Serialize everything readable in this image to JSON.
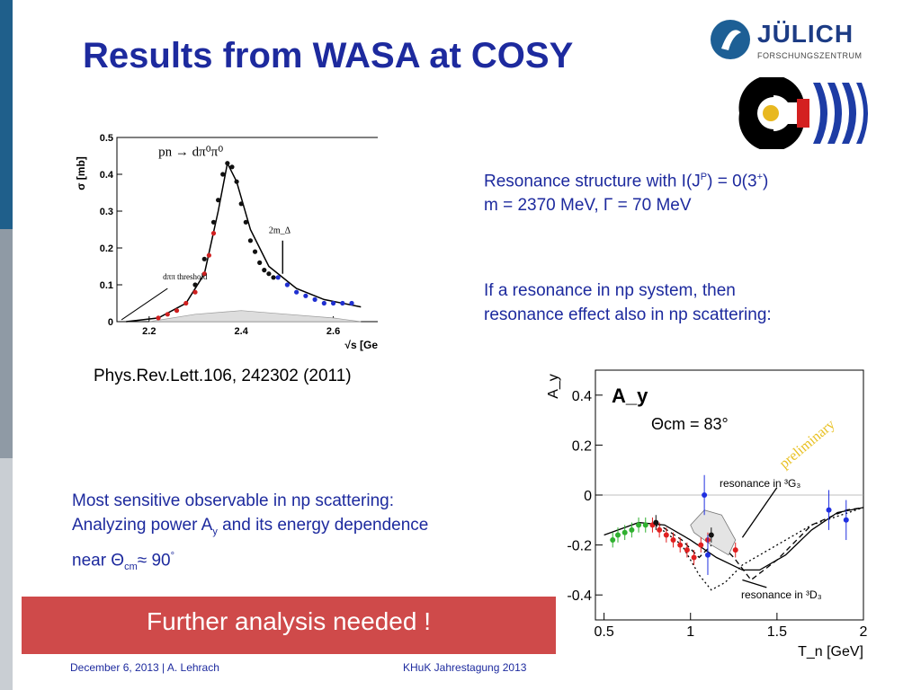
{
  "slide": {
    "title": "Results from WASA at COSY",
    "logo": {
      "wordmark": "JÜLICH",
      "subtitle": "FORSCHUNGSZENTRUM"
    },
    "resonance_text": {
      "line1_pre": "Resonance structure with I(J",
      "line1_sup": "P",
      "line1_post": ") = 0(3",
      "line1_sup2": "+",
      "line1_end": ")",
      "line2": "m = 2370 MeV, Γ = 70 MeV"
    },
    "np_text": {
      "line1": "If a resonance in np system, then",
      "line2": "resonance effect also in np scattering:"
    },
    "sensitive_text": {
      "line1": "Most sensitive observable in np scattering:",
      "line2_pre": "Analyzing power A",
      "line2_sub": "y",
      "line2_post": " and its  energy dependence",
      "line3_pre": "near Θ",
      "line3_sub": "cm",
      "line3_post": "≈ 90",
      "line3_sup": "°"
    },
    "reference": "Phys.Rev.Lett.106, 242302 (2011)",
    "banner": "Further analysis needed !",
    "footer_left": "December 6, 2013 | A. Lehrach",
    "footer_right": "KHuK Jahrestagung 2013",
    "colors": {
      "navy": "#1d2a9e",
      "banner": "#cf4a4a",
      "side_dark": "#1f5f8b",
      "side_mid": "#8f9aa5",
      "side_gray": "#c9ced3"
    }
  },
  "chart_data": [
    {
      "type": "scatter",
      "xlabel": "√s [GeV]",
      "ylabel": "σ [mb]",
      "xlim": [
        2.13,
        2.72
      ],
      "ylim": [
        0,
        0.5
      ],
      "xticks": [
        "2.2",
        "2.4",
        "2.6"
      ],
      "yticks": [
        "0",
        "0.1",
        "0.2",
        "0.3",
        "0.4",
        "0.5"
      ],
      "annotations": [
        "pn → dπ⁰π⁰",
        "2m_Δ",
        "dππ threshold"
      ],
      "series": [
        {
          "color": "#d02020",
          "x": [
            2.22,
            2.24,
            2.26,
            2.28,
            2.3,
            2.32,
            2.33,
            2.34
          ],
          "y": [
            0.01,
            0.02,
            0.03,
            0.05,
            0.08,
            0.13,
            0.18,
            0.24
          ]
        },
        {
          "color": "#111111",
          "x": [
            2.3,
            2.32,
            2.34,
            2.35,
            2.36,
            2.37,
            2.38,
            2.39,
            2.4,
            2.41,
            2.42,
            2.43,
            2.44,
            2.45,
            2.46,
            2.47
          ],
          "y": [
            0.1,
            0.17,
            0.27,
            0.33,
            0.4,
            0.43,
            0.42,
            0.38,
            0.32,
            0.27,
            0.22,
            0.19,
            0.16,
            0.14,
            0.13,
            0.12
          ]
        },
        {
          "color": "#2030d0",
          "x": [
            2.48,
            2.5,
            2.52,
            2.54,
            2.56,
            2.58,
            2.6,
            2.62,
            2.64
          ],
          "y": [
            0.12,
            0.1,
            0.08,
            0.07,
            0.06,
            0.05,
            0.05,
            0.05,
            0.05
          ]
        }
      ],
      "fit_curve": {
        "x": [
          2.15,
          2.22,
          2.28,
          2.32,
          2.35,
          2.37,
          2.39,
          2.42,
          2.46,
          2.52,
          2.58,
          2.66
        ],
        "y": [
          0,
          0.01,
          0.05,
          0.13,
          0.3,
          0.43,
          0.38,
          0.25,
          0.15,
          0.09,
          0.06,
          0.04
        ]
      }
    },
    {
      "type": "scatter",
      "title": "A_y",
      "subtitle": "Θcm = 83°",
      "xlabel": "T_n [GeV]",
      "ylabel": "A_y",
      "xlim": [
        0.45,
        2.0
      ],
      "ylim": [
        -0.5,
        0.5
      ],
      "xticks": [
        "0.5",
        "1",
        "1.5",
        "2"
      ],
      "yticks": [
        "-0.4",
        "-0.2",
        "0",
        "0.2",
        "0.4"
      ],
      "annotations": [
        "preliminary",
        "resonance in ³G₃",
        "resonance in ³D₃"
      ],
      "series": [
        {
          "color": "#30b030",
          "x": [
            0.55,
            0.58,
            0.62,
            0.66,
            0.7,
            0.74
          ],
          "y": [
            -0.18,
            -0.16,
            -0.15,
            -0.14,
            -0.12,
            -0.12
          ]
        },
        {
          "color": "#e02020",
          "x": [
            0.78,
            0.82,
            0.86,
            0.9,
            0.94,
            0.98,
            1.02,
            1.06,
            1.1,
            1.26
          ],
          "y": [
            -0.12,
            -0.14,
            -0.16,
            -0.18,
            -0.2,
            -0.22,
            -0.25,
            -0.2,
            -0.18,
            -0.22
          ]
        },
        {
          "color": "#2030e0",
          "x": [
            1.08,
            1.1,
            1.8,
            1.9
          ],
          "y": [
            0.0,
            -0.24,
            -0.06,
            -0.1
          ]
        },
        {
          "color": "#111111",
          "x": [
            0.8,
            1.12
          ],
          "y": [
            -0.11,
            -0.16
          ]
        }
      ],
      "curves": [
        {
          "style": "solid",
          "x": [
            0.5,
            0.7,
            0.85,
            1.0,
            1.15,
            1.3,
            1.4,
            1.55,
            1.7,
            1.85,
            2.0
          ],
          "y": [
            -0.16,
            -0.11,
            -0.12,
            -0.18,
            -0.25,
            -0.3,
            -0.3,
            -0.24,
            -0.14,
            -0.07,
            -0.05
          ]
        },
        {
          "style": "dashed",
          "x": [
            0.8,
            0.95,
            1.05,
            1.15,
            1.25,
            1.35,
            1.5,
            1.7,
            1.9,
            2.0
          ],
          "y": [
            -0.11,
            -0.18,
            -0.25,
            -0.18,
            -0.25,
            -0.34,
            -0.26,
            -0.12,
            -0.06,
            -0.05
          ]
        },
        {
          "style": "dotted",
          "x": [
            0.8,
            0.95,
            1.05,
            1.12,
            1.2,
            1.3,
            1.45,
            1.7,
            2.0
          ],
          "y": [
            -0.12,
            -0.2,
            -0.32,
            -0.38,
            -0.35,
            -0.28,
            -0.22,
            -0.12,
            -0.05
          ]
        }
      ]
    }
  ]
}
